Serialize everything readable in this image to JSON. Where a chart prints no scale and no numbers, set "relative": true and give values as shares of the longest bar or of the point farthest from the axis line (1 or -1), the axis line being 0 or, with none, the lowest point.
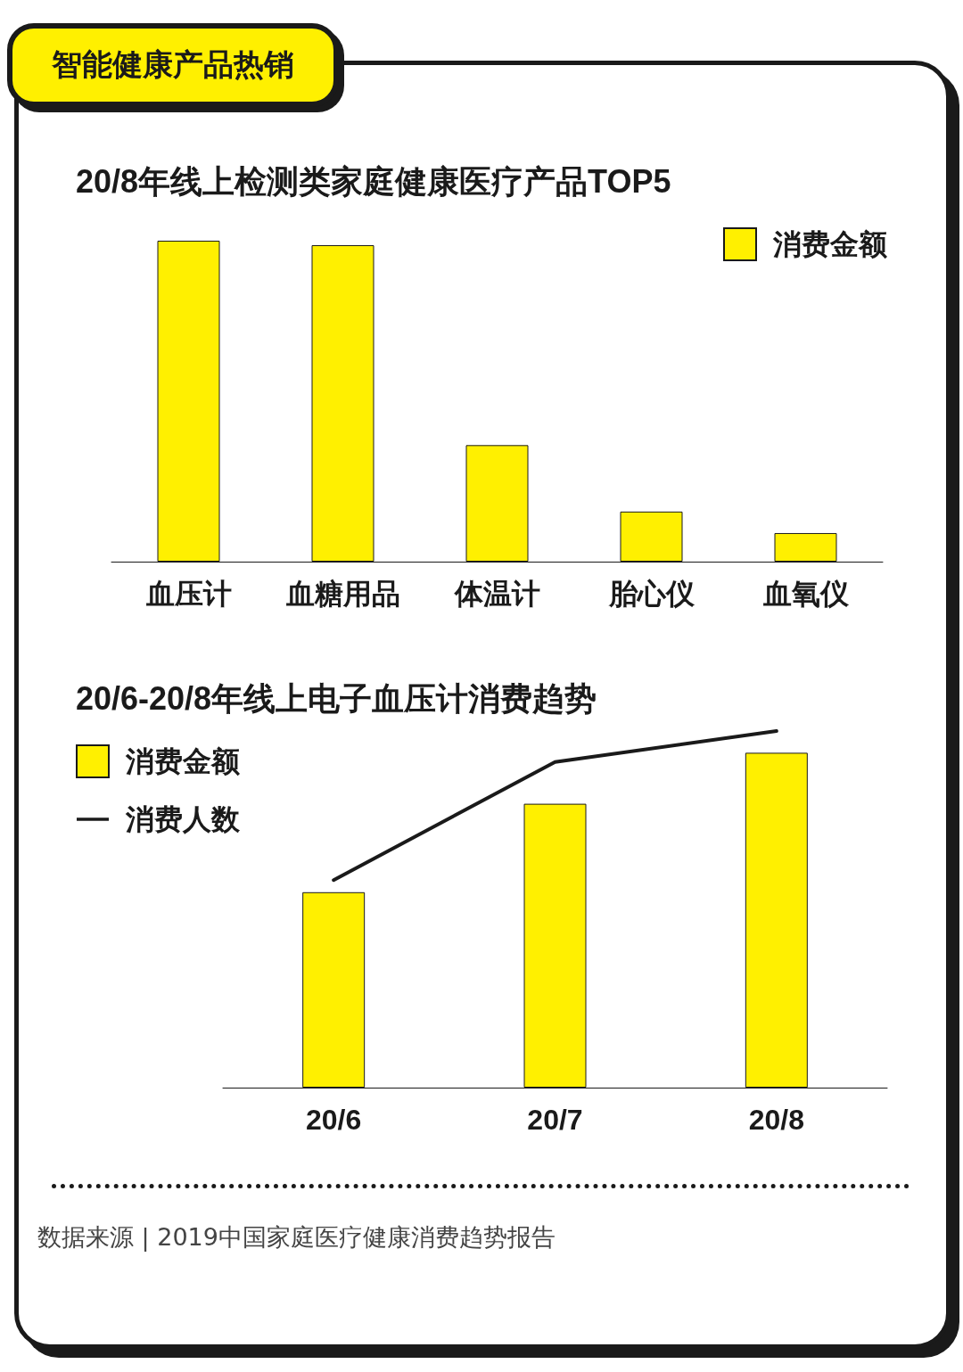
{
  "chart_data": [
    {
      "type": "bar",
      "title": "20/8年线上检测类家庭健康医疗产品TOP5",
      "annotations": [
        "智能健康产品热销"
      ],
      "categories": [
        "血压计",
        "血糖用品",
        "体温计",
        "胎心仪",
        "血氧仪"
      ],
      "relative": true,
      "legend": "top right",
      "series": [
        {
          "name": "消费金额",
          "color": "#fff000",
          "values": [
            1,
            0.986,
            0.363,
            0.156,
            0.089
          ]
        }
      ]
    },
    {
      "type": "bar",
      "title": "20/6-20/8年线上电子血压计消费趋势",
      "annotations": [
        "数据来源 | 2019中国家庭医疗健康消费趋势报告"
      ],
      "categories": [
        "20/6",
        "20/7",
        "20/8"
      ],
      "relative": true,
      "legend": "top left",
      "series": [
        {
          "name": "消费金额",
          "color": "#fff000",
          "values": [
            0.548,
            0.796,
            0.939
          ]
        },
        {
          "name": "消费人数",
          "type": "line",
          "color": "#1a1a1a",
          "values": [
            0.582,
            0.913,
            1
          ]
        }
      ]
    }
  ]
}
